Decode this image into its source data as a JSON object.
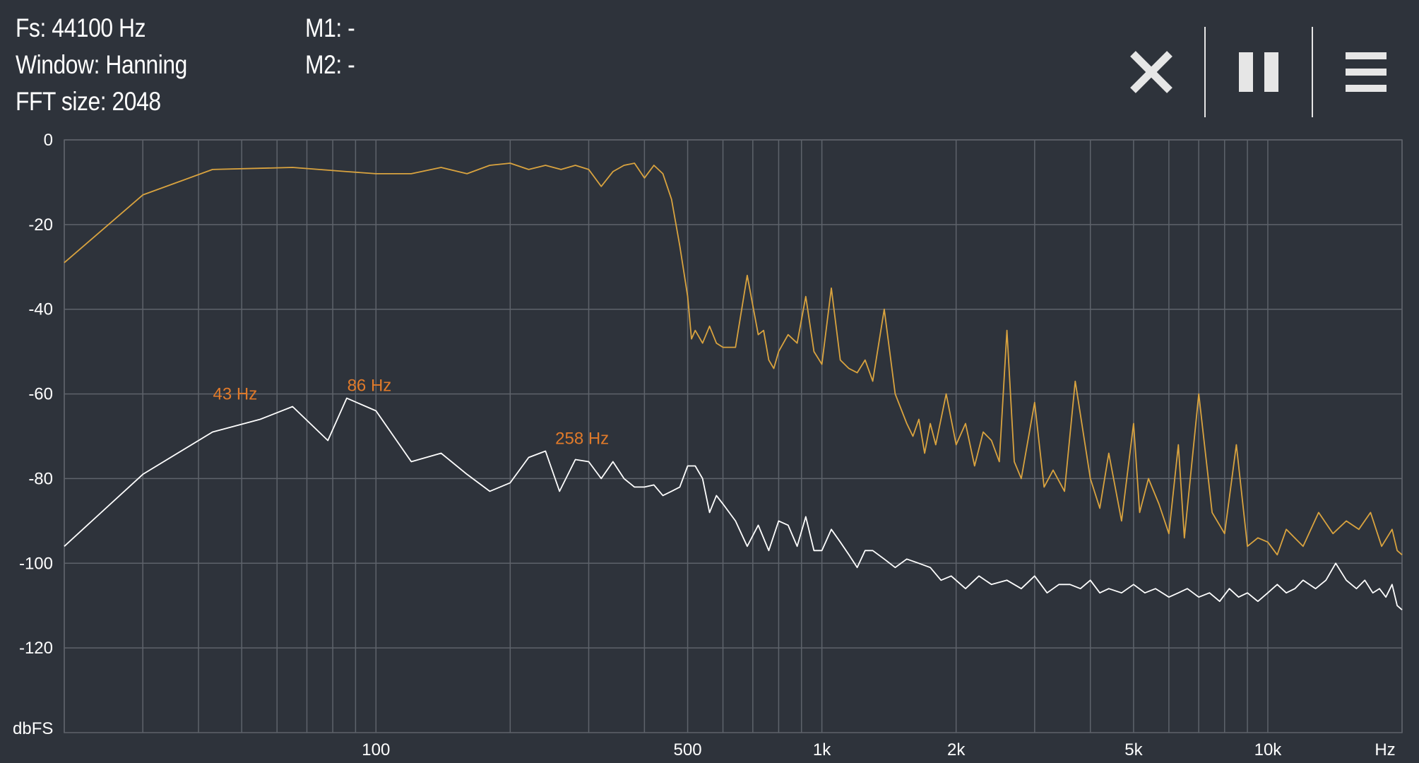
{
  "info": {
    "fs": "Fs: 44100 Hz",
    "window": "Window: Hanning",
    "fft": "FFT size: 2048",
    "m1": "M1: -",
    "m2": "M2: -"
  },
  "toolbar": {
    "buttons": [
      {
        "icon": "close-icon"
      },
      {
        "icon": "pause-icon"
      },
      {
        "icon": "menu-icon"
      }
    ]
  },
  "colors": {
    "background": "#2e333b",
    "grid": "#5e636b",
    "spectrum_peak": "#d9a33f",
    "spectrum_current": "#ffffff",
    "peak_label": "#e07a2a"
  },
  "chart_data": {
    "type": "line",
    "xscale": "log",
    "xlim": [
      20,
      20000
    ],
    "ylim": [
      -140,
      0
    ],
    "ylabel": "dbFS",
    "xlabel": "Hz",
    "y_ticks": [
      {
        "value": 0,
        "label": "0"
      },
      {
        "value": -20,
        "label": "-20"
      },
      {
        "value": -40,
        "label": "-40"
      },
      {
        "value": -60,
        "label": "-60"
      },
      {
        "value": -80,
        "label": "-80"
      },
      {
        "value": -100,
        "label": "-100"
      },
      {
        "value": -120,
        "label": "-120"
      }
    ],
    "x_ticks": [
      {
        "value": 100,
        "label": "100"
      },
      {
        "value": 500,
        "label": "500"
      },
      {
        "value": 1000,
        "label": "1k"
      },
      {
        "value": 2000,
        "label": "2k"
      },
      {
        "value": 5000,
        "label": "5k"
      },
      {
        "value": 10000,
        "label": "10k"
      }
    ],
    "x_grid": [
      20,
      30,
      40,
      50,
      60,
      70,
      80,
      90,
      100,
      200,
      300,
      400,
      500,
      600,
      700,
      800,
      900,
      1000,
      2000,
      3000,
      4000,
      5000,
      6000,
      7000,
      8000,
      9000,
      10000,
      20000
    ],
    "series": [
      {
        "color": "#d9a33f",
        "x": [
          20,
          30,
          43,
          65,
          86,
          100,
          120,
          140,
          160,
          180,
          200,
          220,
          240,
          260,
          280,
          300,
          320,
          340,
          360,
          380,
          400,
          420,
          440,
          460,
          480,
          500,
          510,
          520,
          540,
          560,
          580,
          600,
          640,
          680,
          720,
          740,
          760,
          780,
          800,
          840,
          880,
          920,
          960,
          1000,
          1050,
          1100,
          1150,
          1200,
          1250,
          1300,
          1380,
          1460,
          1550,
          1600,
          1650,
          1700,
          1750,
          1800,
          1900,
          2000,
          2100,
          2200,
          2300,
          2400,
          2500,
          2600,
          2700,
          2800,
          3000,
          3150,
          3300,
          3500,
          3700,
          4000,
          4200,
          4400,
          4700,
          5000,
          5160,
          5400,
          5700,
          6000,
          6300,
          6500,
          7000,
          7500,
          8000,
          8500,
          9000,
          9500,
          10000,
          10500,
          11000,
          12000,
          13000,
          14000,
          15000,
          16000,
          17000,
          18000,
          19000,
          19500,
          20000
        ],
        "y": [
          -29,
          -13,
          -7,
          -6.5,
          -7.5,
          -8,
          -8,
          -6.5,
          -8,
          -6,
          -5.5,
          -7,
          -6,
          -7,
          -6,
          -7,
          -11,
          -7.5,
          -6,
          -5.5,
          -9,
          -6,
          -8,
          -14,
          -25,
          -37,
          -47,
          -45,
          -48,
          -44,
          -48,
          -49,
          -49,
          -32,
          -46,
          -45,
          -52,
          -54,
          -50,
          -46,
          -48,
          -37,
          -50,
          -53,
          -35,
          -52,
          -54,
          -55,
          -52,
          -57,
          -40,
          -60,
          -67,
          -70,
          -66,
          -74,
          -67,
          -72,
          -60,
          -72,
          -67,
          -77,
          -69,
          -71,
          -76,
          -45,
          -76,
          -80,
          -62,
          -82,
          -78,
          -83,
          -57,
          -80,
          -87,
          -74,
          -90,
          -67,
          -88,
          -80,
          -86,
          -93,
          -72,
          -94,
          -60,
          -88,
          -93,
          -72,
          -96,
          -94,
          -95,
          -98,
          -92,
          -96,
          -88,
          -93,
          -90,
          -92,
          -88,
          -96,
          -92,
          -97,
          -98
        ]
      },
      {
        "color": "#ffffff",
        "x": [
          20,
          30,
          43,
          55,
          65,
          78,
          86,
          100,
          120,
          140,
          160,
          180,
          200,
          220,
          240,
          258,
          280,
          300,
          320,
          340,
          360,
          380,
          400,
          420,
          440,
          460,
          480,
          500,
          520,
          540,
          560,
          580,
          600,
          640,
          680,
          720,
          760,
          800,
          840,
          880,
          920,
          960,
          1000,
          1050,
          1100,
          1150,
          1200,
          1250,
          1300,
          1380,
          1460,
          1550,
          1650,
          1750,
          1850,
          1950,
          2100,
          2250,
          2400,
          2600,
          2800,
          3000,
          3200,
          3400,
          3600,
          3800,
          4000,
          4200,
          4400,
          4700,
          5000,
          5300,
          5600,
          6000,
          6300,
          6600,
          7000,
          7400,
          7800,
          8200,
          8600,
          9000,
          9500,
          10000,
          10500,
          11000,
          11500,
          12000,
          12800,
          13500,
          14200,
          15000,
          15800,
          16500,
          17200,
          17800,
          18400,
          19000,
          19500,
          20000
        ],
        "y": [
          -96,
          -79,
          -69,
          -66,
          -63,
          -71,
          -61,
          -64,
          -76,
          -74,
          -79,
          -83,
          -81,
          -75,
          -73.5,
          -83,
          -75.5,
          -76,
          -80,
          -76,
          -80,
          -82,
          -82,
          -81.5,
          -84,
          -83,
          -82,
          -77,
          -77,
          -80,
          -88,
          -84,
          -86,
          -90,
          -96,
          -91,
          -97,
          -90,
          -91,
          -96,
          -89,
          -97,
          -97,
          -92,
          -95,
          -98,
          -101,
          -97,
          -97,
          -99,
          -101,
          -99,
          -100,
          -101,
          -104,
          -103,
          -106,
          -103,
          -105,
          -104,
          -106,
          -103,
          -107,
          -105,
          -105,
          -106,
          -104,
          -107,
          -106,
          -107,
          -105,
          -107,
          -106,
          -108,
          -107,
          -106,
          -108,
          -107,
          -109,
          -106,
          -108,
          -107,
          -109,
          -107,
          -105,
          -107,
          -106,
          -104,
          -106,
          -104,
          -100,
          -104,
          -106,
          -104,
          -107,
          -106,
          -108,
          -105,
          -110,
          -111
        ]
      }
    ],
    "annotations": [
      {
        "label": "43 Hz",
        "x": 43,
        "y": -63
      },
      {
        "label": "86 Hz",
        "x": 86,
        "y": -61
      },
      {
        "label": "258 Hz",
        "x": 258,
        "y": -73.5
      }
    ]
  }
}
